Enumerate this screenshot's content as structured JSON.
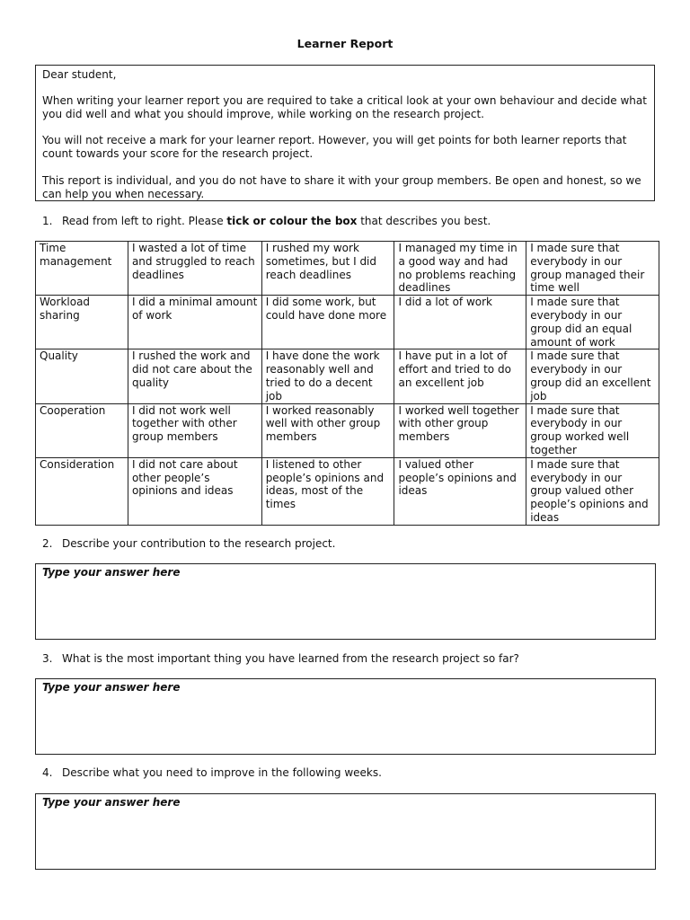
{
  "title": "Learner Report",
  "intro": {
    "greeting": "Dear student,",
    "paragraphs": [
      "When writing your learner report you are required to take a critical look at your own behaviour and decide what you did well and what you should improve, while working on the research project.",
      "You will not receive a mark for your learner report. However, you will get points for both learner reports that count towards your score for the research project.",
      "This report is individual, and you do not have to share it with your group members. Be open and honest, so we can help you when necessary."
    ]
  },
  "questions": [
    {
      "number": "1.",
      "text_before": "Read from left to right. Please ",
      "text_bold": "tick or colour the box",
      "text_after": " that describes you best."
    },
    {
      "number": "2.",
      "text": "Describe your contribution to the research project.",
      "placeholder": "Type your answer here"
    },
    {
      "number": "3.",
      "text": "What is the most important thing you have learned from the research project so far?",
      "placeholder": "Type your answer here"
    },
    {
      "number": "4.",
      "text": "Describe what you need to improve in the following weeks.",
      "placeholder": "Type your answer here"
    }
  ],
  "table": {
    "rows": [
      [
        "Time management",
        "I wasted a lot of time and struggled to reach deadlines",
        "I rushed my work sometimes, but I did reach deadlines",
        "I managed my time in a good way and had no problems reaching deadlines",
        "I made sure that everybody in our group managed their time well"
      ],
      [
        "Workload sharing",
        "I did a minimal amount of work",
        "I did some work, but could have done more",
        "I did a lot of work",
        "I made sure that everybody in our group did an equal amount of work"
      ],
      [
        "Quality",
        "I rushed the work and did not care about the quality",
        "I have done the work reasonably well and tried to do a decent job",
        "I have put in a lot of effort and tried to do an excellent job",
        "I made sure that everybody in our group did an excellent job"
      ],
      [
        "Cooperation",
        "I did not work well together with other group members",
        "I worked reasonably well with other group members",
        "I worked well together with other group members",
        "I made sure that everybody in our group worked well together"
      ],
      [
        "Consideration",
        "I did not care about other people’s opinions and ideas",
        "I listened to other people’s opinions and ideas, most of the times",
        "I valued other people’s opinions and ideas",
        "I made sure that everybody in our group valued other people’s opinions and ideas"
      ]
    ]
  }
}
